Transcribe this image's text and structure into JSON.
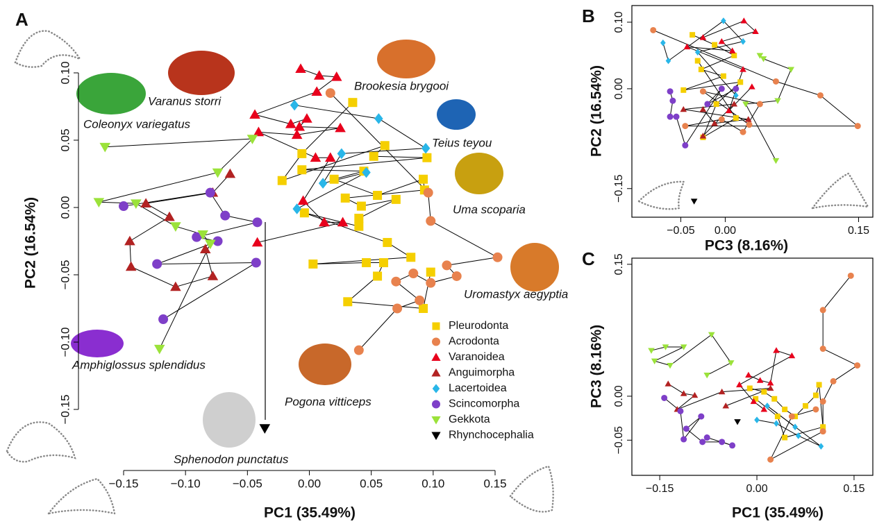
{
  "chart_data": [
    {
      "type": "scatter",
      "panel": "A",
      "xlabel": "PC1 (35.49%)",
      "ylabel": "PC2 (16.54%)",
      "xlim": [
        -0.15,
        0.15
      ],
      "ylim": [
        -0.15,
        0.1
      ],
      "xticks": [
        {
          "value": -0.15,
          "label": "−0.15"
        },
        {
          "value": -0.1,
          "label": "−0.10"
        },
        {
          "value": -0.05,
          "label": "−0.05"
        },
        {
          "value": 0,
          "label": "0.00"
        },
        {
          "value": 0.05,
          "label": "0.05"
        },
        {
          "value": 0.1,
          "label": "0.10"
        },
        {
          "value": 0.15,
          "label": "0.15"
        }
      ],
      "yticks": [
        {
          "value": -0.15,
          "label": "−0.15"
        },
        {
          "value": -0.1,
          "label": "−0.10"
        },
        {
          "value": -0.05,
          "label": "−0.05"
        },
        {
          "value": 0,
          "label": "0.00"
        },
        {
          "value": 0.05,
          "label": "0.05"
        },
        {
          "value": 0.1,
          "label": "0.10"
        }
      ],
      "annotations": [
        "Brookesia brygooi",
        "Varanus storri",
        "Coleonyx variegatus",
        "Teius teyou",
        "Uma scoparia",
        "Uromastyx aegyptia",
        "Amphiglossus splendidus",
        "Pogona vitticeps",
        "Sphenodon punctatus"
      ],
      "series": [
        {
          "name": "Pleurodonta",
          "color": "#f5cf00",
          "marker": "square",
          "x": [
            0.035,
            -0.006,
            -0.022,
            0.061,
            0.052,
            0.095,
            -0.006,
            0.044,
            0.02,
            0.055,
            0.092,
            0.093,
            0.029,
            0.042,
            0.07,
            0.04,
            0.04,
            -0.004,
            0.063,
            0.082,
            0.003,
            0.046,
            0.06,
            0.055,
            0.031,
            0.092,
            0.098
          ],
          "y": [
            0.078,
            0.04,
            0.02,
            0.046,
            0.038,
            0.037,
            0.028,
            0.027,
            0.021,
            0.009,
            0.021,
            0.013,
            0.007,
            0.001,
            0.006,
            -0.008,
            -0.014,
            -0.004,
            -0.026,
            -0.037,
            -0.042,
            -0.041,
            -0.041,
            -0.051,
            -0.07,
            -0.075,
            -0.048
          ]
        },
        {
          "name": "Acrodonta",
          "color": "#e8824e",
          "marker": "circle",
          "x": [
            0.017,
            0.096,
            0.098,
            0.152,
            0.111,
            0.119,
            0.098,
            0.084,
            0.07,
            0.089,
            0.071,
            0.04
          ],
          "y": [
            0.085,
            0.011,
            -0.01,
            -0.037,
            -0.043,
            -0.051,
            -0.056,
            -0.049,
            -0.055,
            -0.069,
            -0.075,
            -0.106
          ]
        },
        {
          "name": "Varanoidea",
          "color": "#e8001c",
          "marker": "triangle-up",
          "x": [
            -0.007,
            0.008,
            0.022,
            0.006,
            -0.044,
            -0.015,
            -0.002,
            -0.008,
            0.025,
            -0.01,
            -0.041,
            0.005,
            0.017,
            -0.005,
            0.012,
            0.027,
            -0.042
          ],
          "y": [
            0.103,
            0.098,
            0.097,
            0.086,
            0.069,
            0.062,
            0.066,
            0.06,
            0.059,
            0.054,
            0.056,
            0.037,
            0.037,
            0.005,
            -0.011,
            -0.011,
            -0.026
          ]
        },
        {
          "name": "Anguimorpha",
          "color": "#b22222",
          "marker": "triangle-up",
          "x": [
            -0.064,
            -0.078,
            -0.132,
            -0.113,
            -0.145,
            -0.144,
            -0.108,
            -0.078,
            -0.084
          ],
          "y": [
            0.025,
            0.011,
            0.003,
            -0.007,
            -0.025,
            -0.044,
            -0.059,
            -0.051,
            -0.031
          ]
        },
        {
          "name": "Lacertoidea",
          "color": "#29b6e8",
          "marker": "diamond",
          "x": [
            -0.012,
            0.056,
            0.094,
            0.026,
            0.011,
            0.046,
            -0.01
          ],
          "y": [
            0.076,
            0.066,
            0.044,
            0.04,
            0.018,
            0.026,
            -0.001
          ]
        },
        {
          "name": "Scincomorpha",
          "color": "#7e3fc8",
          "marker": "circle",
          "x": [
            -0.15,
            -0.08,
            -0.068,
            -0.042,
            -0.091,
            -0.074,
            -0.123,
            -0.043,
            -0.118
          ],
          "y": [
            0.001,
            0.011,
            -0.006,
            -0.011,
            -0.022,
            -0.025,
            -0.042,
            -0.041,
            -0.083
          ]
        },
        {
          "name": "Gekkota",
          "color": "#9be23a",
          "marker": "triangle-down",
          "x": [
            -0.165,
            -0.046,
            -0.074,
            -0.17,
            -0.14,
            -0.108,
            -0.086,
            -0.08,
            -0.121
          ],
          "y": [
            0.045,
            0.051,
            0.026,
            0.004,
            0.003,
            -0.014,
            -0.02,
            -0.027,
            -0.105
          ]
        },
        {
          "name": "Rhynchocephalia",
          "color": "#000000",
          "marker": "triangle-down",
          "x": [
            -0.036
          ],
          "y": [
            -0.164
          ]
        }
      ]
    },
    {
      "type": "scatter",
      "panel": "B",
      "xlabel": "PC3 (8.16%)",
      "ylabel": "PC2 (16.54%)",
      "xlim": [
        -0.105,
        0.166
      ],
      "ylim": [
        -0.193,
        0.125
      ],
      "xticks": [
        {
          "value": -0.05,
          "label": "−0.05"
        },
        {
          "value": 0,
          "label": "0.00"
        },
        {
          "value": 0.15,
          "label": "0.15"
        }
      ],
      "yticks": [
        {
          "value": -0.15,
          "label": "−0.15"
        },
        {
          "value": 0,
          "label": "0.00"
        },
        {
          "value": 0.1,
          "label": "0.10"
        }
      ],
      "series": [
        {
          "color": "#f5cf00",
          "marker": "square",
          "x": [
            -0.037,
            -0.012,
            0.01,
            -0.027,
            -0.002,
            -0.047,
            0.017,
            -0.01,
            -0.025,
            0.012,
            -0.031
          ],
          "y": [
            0.081,
            0.066,
            0.05,
            0.029,
            0.019,
            -0.002,
            0.01,
            -0.023,
            -0.073,
            -0.044,
            0.042
          ]
        },
        {
          "color": "#e8824e",
          "marker": "circle",
          "x": [
            -0.081,
            0.057,
            0.107,
            0.149,
            -0.045,
            -0.004,
            0.02,
            0.039,
            -0.025,
            0.027
          ],
          "y": [
            0.088,
            0.011,
            -0.01,
            -0.056,
            -0.056,
            -0.046,
            -0.065,
            -0.023,
            -0.004,
            -0.054
          ]
        },
        {
          "color": "#e8001c",
          "marker": "triangle-up",
          "x": [
            -0.025,
            0.021,
            0.034,
            -0.004,
            0.008,
            -0.043,
            0.02,
            0.004,
            0.03
          ],
          "y": [
            0.077,
            0.102,
            0.086,
            0.071,
            0.057,
            0.063,
            0.029,
            -0.033,
            0.003
          ]
        },
        {
          "color": "#b22222",
          "marker": "triangle-up",
          "x": [
            -0.025,
            -0.012,
            0.026,
            -0.047,
            0.01,
            -0.025
          ],
          "y": [
            -0.031,
            -0.052,
            -0.046,
            -0.031,
            -0.023,
            -0.071
          ]
        },
        {
          "color": "#29b6e8",
          "marker": "diamond",
          "x": [
            -0.07,
            -0.064,
            -0.002,
            0.02,
            -0.031,
            0.012
          ],
          "y": [
            0.069,
            0.042,
            0.102,
            0.071,
            0.055,
            -0.01
          ]
        },
        {
          "color": "#7e3fc8",
          "marker": "circle",
          "x": [
            -0.062,
            -0.059,
            -0.062,
            -0.055,
            -0.045,
            -0.004,
            -0.02,
            0.012
          ],
          "y": [
            -0.004,
            -0.018,
            -0.042,
            -0.042,
            -0.085,
            0.0,
            -0.023,
            0.0
          ]
        },
        {
          "color": "#9be23a",
          "marker": "triangle-down",
          "x": [
            0.039,
            0.043,
            0.074,
            0.059,
            0.023,
            0.057
          ],
          "y": [
            0.05,
            0.045,
            0.029,
            -0.018,
            -0.023,
            -0.108
          ]
        },
        {
          "color": "#000000",
          "marker": "triangle-down",
          "x": [
            -0.035
          ],
          "y": [
            -0.169
          ]
        }
      ]
    },
    {
      "type": "scatter",
      "panel": "C",
      "xlabel": "PC1 (35.49%)",
      "ylabel": "PC3 (8.16%)",
      "xlim": [
        -0.193,
        0.179
      ],
      "ylim": [
        -0.09,
        0.157
      ],
      "xticks": [
        {
          "value": -0.15,
          "label": "−0.15"
        },
        {
          "value": 0,
          "label": "0.00"
        },
        {
          "value": 0.15,
          "label": "0.15"
        }
      ],
      "yticks": [
        {
          "value": -0.05,
          "label": "−0.05"
        },
        {
          "value": 0,
          "label": "0.00"
        },
        {
          "value": 0.15,
          "label": "0.15"
        }
      ],
      "series": [
        {
          "color": "#f5cf00",
          "marker": "square",
          "x": [
            -0.011,
            0.011,
            0.027,
            0.043,
            0.059,
            0.075,
            0.091,
            0.096,
            0.102,
            0.043,
            0.032,
            -0.002
          ],
          "y": [
            0.009,
            0.005,
            -0.003,
            -0.015,
            -0.023,
            -0.011,
            0.001,
            0.013,
            -0.035,
            -0.047,
            -0.023,
            -0.003
          ]
        },
        {
          "color": "#e8824e",
          "marker": "circle",
          "x": [
            0.145,
            0.102,
            0.102,
            0.155,
            0.118,
            0.102,
            0.102,
            0.021,
            0.054,
            0.091
          ],
          "y": [
            0.137,
            0.098,
            0.054,
            0.035,
            0.017,
            -0.006,
            -0.04,
            -0.072,
            -0.023,
            -0.015
          ]
        },
        {
          "color": "#e8001c",
          "marker": "triangle-up",
          "x": [
            -0.013,
            0.005,
            0.021,
            0.03,
            0.054,
            -0.027,
            -0.005,
            0.011
          ],
          "y": [
            0.024,
            0.018,
            0.015,
            0.052,
            0.046,
            0.013,
            -0.006,
            -0.015
          ]
        },
        {
          "color": "#b22222",
          "marker": "triangle-up",
          "x": [
            -0.137,
            -0.113,
            -0.096,
            -0.123,
            -0.054,
            0.021,
            -0.048
          ],
          "y": [
            0.014,
            0.003,
            0.001,
            -0.015,
            0.005,
            0.009,
            -0.011
          ]
        },
        {
          "color": "#29b6e8",
          "marker": "diamond",
          "x": [
            0.0,
            0.03,
            0.064,
            0.099,
            0.016,
            0.059
          ],
          "y": [
            -0.027,
            -0.031,
            -0.045,
            -0.057,
            -0.011,
            -0.035
          ]
        },
        {
          "color": "#7e3fc8",
          "marker": "circle",
          "x": [
            -0.143,
            -0.118,
            -0.113,
            -0.086,
            -0.109,
            -0.084,
            -0.054,
            -0.038,
            -0.077
          ],
          "y": [
            -0.002,
            -0.017,
            -0.049,
            -0.023,
            -0.037,
            -0.052,
            -0.052,
            -0.056,
            -0.047
          ]
        },
        {
          "color": "#9be23a",
          "marker": "triangle-down",
          "x": [
            -0.163,
            -0.141,
            -0.113,
            -0.158,
            -0.134,
            -0.07,
            -0.04,
            -0.077
          ],
          "y": [
            0.052,
            0.056,
            0.056,
            0.04,
            0.035,
            0.07,
            0.038,
            0.024
          ]
        },
        {
          "color": "#000000",
          "marker": "triangle-down",
          "x": [
            -0.03
          ],
          "y": [
            -0.029
          ]
        }
      ]
    }
  ]
}
